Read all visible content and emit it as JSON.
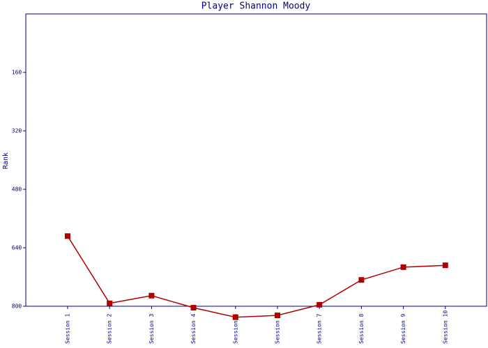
{
  "chart_data": {
    "type": "line",
    "title": "Player Shannon Moody",
    "y_label": "Rank",
    "categories": [
      "Session 1",
      "Session 2",
      "Session 3",
      "Session 4",
      "Session 5",
      "Session 6",
      "Session 7",
      "Session 8",
      "Session 9",
      "Session 10"
    ],
    "values": [
      608,
      792,
      771,
      804,
      830,
      825,
      796,
      728,
      693,
      688
    ],
    "color": "#b00000",
    "ylim": [
      800,
      0
    ],
    "yticks": [
      160,
      320,
      480,
      640,
      800
    ]
  }
}
